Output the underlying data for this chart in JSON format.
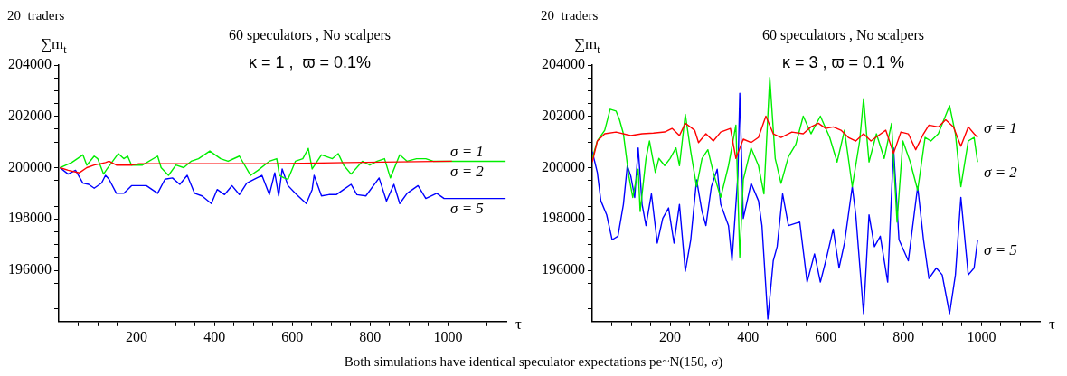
{
  "chart_data": [
    {
      "type": "line",
      "title": "60 speculators , No scalpers",
      "subtitle": "κ = 1 ,  ϖ = 0.1%",
      "ylabel": "∑m$_{t}$",
      "xlabel": "τ",
      "annotations": [
        "20  traders",
        "Both simulations have identical speculator expectations  pe~N(150, σ)"
      ],
      "xlim": [
        0,
        1150
      ],
      "ylim": [
        194000,
        204000
      ],
      "xticks": [
        {
          "value": 50,
          "label": null
        },
        {
          "value": 100,
          "label": null
        },
        {
          "value": 150,
          "label": null
        },
        200,
        {
          "value": 250,
          "label": null
        },
        {
          "value": 300,
          "label": null
        },
        {
          "value": 350,
          "label": null
        },
        400,
        {
          "value": 450,
          "label": null
        },
        {
          "value": 500,
          "label": null
        },
        {
          "value": 550,
          "label": null
        },
        600,
        {
          "value": 650,
          "label": null
        },
        {
          "value": 700,
          "label": null
        },
        {
          "value": 750,
          "label": null
        },
        800,
        {
          "value": 850,
          "label": null
        },
        {
          "value": 900,
          "label": null
        },
        {
          "value": 950,
          "label": null
        },
        1000,
        {
          "value": 1050,
          "label": null
        },
        {
          "value": 1100,
          "label": null
        }
      ],
      "yticks": [
        {
          "value": 194500,
          "label": null
        },
        {
          "value": 195000,
          "label": null
        },
        {
          "value": 195500,
          "label": null
        },
        196000,
        {
          "value": 196500,
          "label": null
        },
        {
          "value": 197000,
          "label": null
        },
        {
          "value": 197500,
          "label": null
        },
        198000,
        {
          "value": 198500,
          "label": null
        },
        {
          "value": 199000,
          "label": null
        },
        {
          "value": 199500,
          "label": null
        },
        200000,
        {
          "value": 200500,
          "label": null
        },
        {
          "value": 201000,
          "label": null
        },
        {
          "value": 201500,
          "label": null
        },
        202000,
        {
          "value": 202500,
          "label": null
        },
        {
          "value": 203000,
          "label": null
        },
        {
          "value": 203500,
          "label": null
        },
        204000
      ],
      "grid": false,
      "legend": false,
      "marker": "none",
      "line_style": "solid",
      "series": [
        {
          "name": "σ = 1",
          "color": "#ff0000",
          "x": [
            3,
            24,
            53,
            72,
            91,
            120,
            129,
            148,
            187,
            206,
            359,
            550,
            742,
            1010
          ],
          "values": [
            200000,
            199900,
            199800,
            200000,
            200100,
            200200,
            200250,
            200100,
            200100,
            200150,
            200150,
            200150,
            200200,
            200250
          ]
        },
        {
          "name": "σ = 2",
          "color": "#00ee00",
          "x": [
            3,
            33,
            62,
            72,
            91,
            100,
            115,
            124,
            153,
            167,
            177,
            187,
            215,
            254,
            263,
            282,
            301,
            321,
            340,
            359,
            388,
            416,
            435,
            464,
            493,
            512,
            541,
            560,
            567,
            579,
            589,
            608,
            627,
            641,
            651,
            675,
            703,
            718,
            732,
            751,
            780,
            799,
            818,
            837,
            852,
            876,
            895,
            919,
            943,
            962,
            990,
            1019,
            1148
          ],
          "values": [
            200000,
            200200,
            200500,
            200100,
            200450,
            200350,
            199750,
            199950,
            200550,
            200350,
            200450,
            200100,
            200100,
            200450,
            200000,
            199700,
            200100,
            200000,
            200250,
            200350,
            200650,
            200350,
            200250,
            200450,
            199700,
            199900,
            200250,
            200350,
            199700,
            199600,
            199550,
            200250,
            200350,
            200750,
            199950,
            200500,
            200350,
            200550,
            200100,
            199750,
            200250,
            200100,
            200250,
            200350,
            199600,
            200500,
            200250,
            200350,
            200350,
            200250,
            200250,
            200250,
            200250
          ]
        },
        {
          "name": "σ = 5",
          "color": "#0000ff",
          "x": [
            3,
            24,
            43,
            62,
            77,
            91,
            110,
            120,
            129,
            148,
            167,
            187,
            225,
            254,
            273,
            292,
            311,
            330,
            349,
            368,
            392,
            407,
            426,
            445,
            464,
            483,
            502,
            522,
            541,
            555,
            565,
            574,
            589,
            608,
            636,
            651,
            656,
            675,
            694,
            713,
            732,
            751,
            766,
            789,
            823,
            842,
            861,
            876,
            895,
            923,
            943,
            971,
            990,
            1010,
            1148
          ],
          "values": [
            200000,
            199750,
            199900,
            199400,
            199350,
            199200,
            199400,
            199700,
            199550,
            199000,
            199000,
            199300,
            199300,
            199000,
            199550,
            199600,
            199350,
            199700,
            199000,
            198900,
            198600,
            199150,
            198950,
            199300,
            198950,
            199400,
            199550,
            199700,
            198950,
            199800,
            198900,
            199950,
            199300,
            199000,
            198600,
            199150,
            199700,
            198900,
            198950,
            198950,
            199150,
            199350,
            198950,
            198900,
            199600,
            198700,
            199350,
            198600,
            199000,
            199300,
            198800,
            199000,
            198800,
            198800,
            198800
          ]
        }
      ]
    },
    {
      "type": "line",
      "title": "60 speculators , No scalpers",
      "subtitle": "κ = 3 , ϖ = 0.1 %",
      "ylabel": "∑m$_{t}$",
      "xlabel": "τ",
      "annotations": [
        "20  traders"
      ],
      "xlim": [
        0,
        1150
      ],
      "ylim": [
        194000,
        204000
      ],
      "xticks": [
        {
          "value": 50,
          "label": null
        },
        {
          "value": 100,
          "label": null
        },
        {
          "value": 150,
          "label": null
        },
        200,
        {
          "value": 250,
          "label": null
        },
        {
          "value": 300,
          "label": null
        },
        {
          "value": 350,
          "label": null
        },
        400,
        {
          "value": 450,
          "label": null
        },
        {
          "value": 500,
          "label": null
        },
        {
          "value": 550,
          "label": null
        },
        600,
        {
          "value": 650,
          "label": null
        },
        {
          "value": 700,
          "label": null
        },
        {
          "value": 750,
          "label": null
        },
        800,
        {
          "value": 850,
          "label": null
        },
        {
          "value": 900,
          "label": null
        },
        {
          "value": 950,
          "label": null
        },
        1000,
        {
          "value": 1050,
          "label": null
        },
        {
          "value": 1100,
          "label": null
        }
      ],
      "yticks": [
        {
          "value": 194500,
          "label": null
        },
        {
          "value": 195000,
          "label": null
        },
        {
          "value": 195500,
          "label": null
        },
        196000,
        {
          "value": 196500,
          "label": null
        },
        {
          "value": 197000,
          "label": null
        },
        {
          "value": 197500,
          "label": null
        },
        198000,
        {
          "value": 198500,
          "label": null
        },
        {
          "value": 199000,
          "label": null
        },
        {
          "value": 199500,
          "label": null
        },
        200000,
        {
          "value": 200500,
          "label": null
        },
        {
          "value": 201000,
          "label": null
        },
        {
          "value": 201500,
          "label": null
        },
        202000,
        {
          "value": 202500,
          "label": null
        },
        {
          "value": 203000,
          "label": null
        },
        {
          "value": 203500,
          "label": null
        },
        204000
      ],
      "grid": false,
      "legend": false,
      "marker": "none",
      "line_style": "solid",
      "series": [
        {
          "name": "σ = 1",
          "color": "#ff0000",
          "x": [
            0,
            13,
            32,
            61,
            99,
            128,
            157,
            186,
            205,
            224,
            239,
            263,
            273,
            292,
            311,
            330,
            355,
            369,
            388,
            408,
            427,
            446,
            465,
            485,
            513,
            542,
            562,
            581,
            600,
            619,
            639,
            658,
            677,
            697,
            716,
            735,
            754,
            774,
            793,
            812,
            831,
            851,
            865,
            889,
            908,
            928,
            947,
            966,
            981,
            990
          ],
          "values": [
            200220,
            201040,
            201320,
            201390,
            201250,
            201320,
            201350,
            201390,
            201530,
            201250,
            201730,
            201460,
            200980,
            201320,
            201040,
            201390,
            201530,
            200360,
            201110,
            200980,
            201180,
            202010,
            201320,
            201180,
            201390,
            201320,
            201590,
            201730,
            201530,
            201590,
            201460,
            201180,
            201040,
            201320,
            201040,
            201250,
            201460,
            200560,
            201390,
            201320,
            200700,
            201320,
            201660,
            201590,
            201870,
            201590,
            200840,
            201590,
            201320,
            201180
          ]
        },
        {
          "name": "σ = 2",
          "color": "#00ee00",
          "x": [
            0,
            13,
            32,
            46,
            61,
            70,
            80,
            94,
            104,
            118,
            123,
            138,
            147,
            162,
            171,
            186,
            200,
            215,
            224,
            239,
            253,
            268,
            282,
            297,
            311,
            330,
            350,
            369,
            379,
            388,
            408,
            427,
            441,
            456,
            470,
            485,
            504,
            523,
            542,
            562,
            586,
            610,
            629,
            648,
            668,
            687,
            697,
            711,
            730,
            750,
            769,
            783,
            798,
            817,
            836,
            855,
            870,
            889,
            918,
            933,
            947,
            966,
            981,
            990
          ],
          "values": [
            200360,
            201040,
            201460,
            202280,
            202210,
            201870,
            201320,
            199670,
            198840,
            199940,
            198290,
            200360,
            201040,
            199810,
            200360,
            200080,
            200360,
            200770,
            200080,
            202080,
            200630,
            199260,
            200360,
            200700,
            199810,
            198840,
            200080,
            201660,
            196510,
            199530,
            200770,
            200080,
            198980,
            203520,
            200360,
            199390,
            200430,
            200910,
            202010,
            201320,
            202010,
            201180,
            200220,
            201460,
            199260,
            201040,
            202690,
            200220,
            201320,
            200360,
            201730,
            197880,
            201040,
            200220,
            199120,
            201180,
            201040,
            201320,
            202420,
            201320,
            199260,
            201040,
            201180,
            200220
          ]
        },
        {
          "name": "σ = 5",
          "color": "#0000ff",
          "x": [
            0,
            13,
            22,
            37,
            51,
            66,
            80,
            90,
            99,
            109,
            118,
            128,
            138,
            152,
            167,
            181,
            196,
            210,
            224,
            239,
            253,
            268,
            282,
            292,
            306,
            321,
            330,
            350,
            359,
            374,
            379,
            388,
            408,
            427,
            436,
            451,
            465,
            475,
            489,
            504,
            533,
            552,
            571,
            586,
            600,
            619,
            634,
            648,
            668,
            677,
            697,
            711,
            725,
            740,
            759,
            774,
            788,
            812,
            836,
            851,
            865,
            884,
            899,
            918,
            933,
            947,
            966,
            981,
            990
          ],
          "values": [
            200630,
            199810,
            198710,
            198160,
            197190,
            197330,
            198570,
            200080,
            199670,
            198840,
            200770,
            198570,
            197740,
            198980,
            197060,
            198020,
            198430,
            197060,
            198570,
            195960,
            197190,
            199530,
            198290,
            197740,
            199260,
            199940,
            198570,
            197740,
            196370,
            199670,
            202900,
            198020,
            199390,
            198710,
            197740,
            194100,
            196370,
            196920,
            198980,
            197740,
            197880,
            195540,
            196640,
            195540,
            196370,
            197610,
            196090,
            197060,
            199260,
            198160,
            194310,
            198160,
            196920,
            197330,
            195540,
            200770,
            197190,
            196370,
            199260,
            197190,
            195680,
            196090,
            195820,
            194310,
            195820,
            198840,
            195820,
            196090,
            197190
          ]
        }
      ]
    }
  ]
}
